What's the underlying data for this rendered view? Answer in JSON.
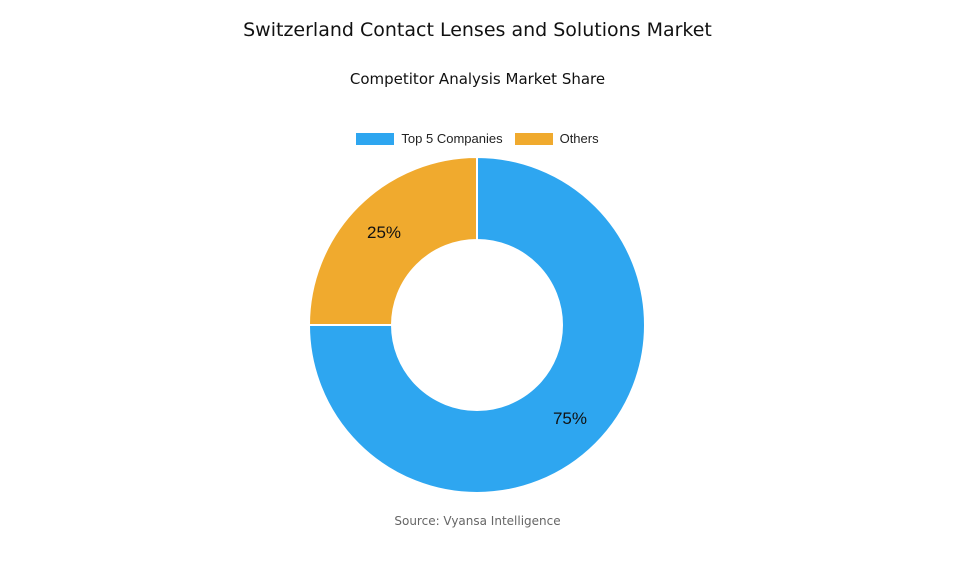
{
  "chart_data": {
    "type": "pie",
    "subtype": "donut",
    "title": "Switzerland Contact Lenses and Solutions Market",
    "subtitle": "Competitor Analysis Market Share",
    "legend_position": "top",
    "series": [
      {
        "name": "Top 5 Companies",
        "value": 75,
        "label": "75%",
        "color": "#2EA6F0"
      },
      {
        "name": "Others",
        "value": 25,
        "label": "25%",
        "color": "#F0AA2E"
      }
    ],
    "source": "Source: Vyansa Intelligence"
  }
}
